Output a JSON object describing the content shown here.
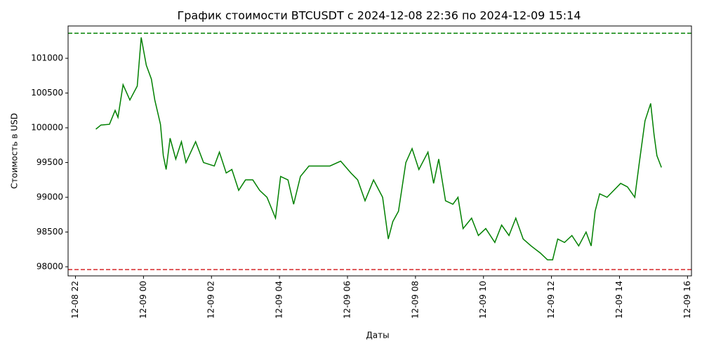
{
  "chart_data": {
    "type": "line",
    "title": "График стоимости BTCUSDT с 2024-12-08 22:36 по 2024-12-09 15:14",
    "xlabel": "Даты",
    "ylabel": "Стоимость в USD",
    "x": [
      "2024-12-08 22:36",
      "2024-12-08 22:45",
      "2024-12-08 23:00",
      "2024-12-08 23:10",
      "2024-12-08 23:15",
      "2024-12-08 23:24",
      "2024-12-08 23:36",
      "2024-12-08 23:49",
      "2024-12-08 23:56",
      "2024-12-09 00:05",
      "2024-12-09 00:14",
      "2024-12-09 00:20",
      "2024-12-09 00:30",
      "2024-12-09 00:35",
      "2024-12-09 00:40",
      "2024-12-09 00:47",
      "2024-12-09 00:57",
      "2024-12-09 01:07",
      "2024-12-09 01:15",
      "2024-12-09 01:32",
      "2024-12-09 01:46",
      "2024-12-09 02:05",
      "2024-12-09 02:14",
      "2024-12-09 02:26",
      "2024-12-09 02:36",
      "2024-12-09 02:48",
      "2024-12-09 03:00",
      "2024-12-09 03:13",
      "2024-12-09 03:25",
      "2024-12-09 03:38",
      "2024-12-09 03:53",
      "2024-12-09 04:02",
      "2024-12-09 04:15",
      "2024-12-09 04:25",
      "2024-12-09 04:37",
      "2024-12-09 04:52",
      "2024-12-09 05:10",
      "2024-12-09 05:29",
      "2024-12-09 05:48",
      "2024-12-09 06:06",
      "2024-12-09 06:18",
      "2024-12-09 06:31",
      "2024-12-09 06:46",
      "2024-12-09 07:02",
      "2024-12-09 07:12",
      "2024-12-09 07:20",
      "2024-12-09 07:30",
      "2024-12-09 07:43",
      "2024-12-09 07:54",
      "2024-12-09 08:06",
      "2024-12-09 08:22",
      "2024-12-09 08:32",
      "2024-12-09 08:41",
      "2024-12-09 08:53",
      "2024-12-09 09:06",
      "2024-12-09 09:15",
      "2024-12-09 09:24",
      "2024-12-09 09:39",
      "2024-12-09 09:51",
      "2024-12-09 10:04",
      "2024-12-09 10:20",
      "2024-12-09 10:32",
      "2024-12-09 10:45",
      "2024-12-09 10:57",
      "2024-12-09 11:10",
      "2024-12-09 11:24",
      "2024-12-09 11:40",
      "2024-12-09 11:53",
      "2024-12-09 12:02",
      "2024-12-09 12:11",
      "2024-12-09 12:23",
      "2024-12-09 12:36",
      "2024-12-09 12:48",
      "2024-12-09 13:01",
      "2024-12-09 13:10",
      "2024-12-09 13:17",
      "2024-12-09 13:25",
      "2024-12-09 13:38",
      "2024-12-09 13:50",
      "2024-12-09 14:02",
      "2024-12-09 14:14",
      "2024-12-09 14:27",
      "2024-12-09 14:35",
      "2024-12-09 14:45",
      "2024-12-09 14:55",
      "2024-12-09 15:01",
      "2024-12-09 15:06",
      "2024-12-09 15:14"
    ],
    "series": [
      {
        "color": "#008000",
        "values": [
          99980,
          100040,
          100050,
          100250,
          100150,
          100620,
          100400,
          100600,
          101300,
          100900,
          100700,
          100400,
          100050,
          99600,
          99400,
          99850,
          99550,
          99800,
          99500,
          99800,
          99500,
          99450,
          99650,
          99350,
          99400,
          99100,
          99250,
          99250,
          99100,
          99000,
          98700,
          99300,
          99250,
          98900,
          99300,
          99450,
          99450,
          99450,
          99520,
          99350,
          99250,
          98950,
          99250,
          99000,
          98400,
          98650,
          98800,
          99500,
          99700,
          99400,
          99650,
          99200,
          99550,
          98950,
          98900,
          99000,
          98550,
          98700,
          98450,
          98550,
          98350,
          98600,
          98450,
          98700,
          98400,
          98300,
          98200,
          98100,
          98100,
          98400,
          98350,
          98450,
          98300,
          98500,
          98300,
          98800,
          99050,
          99000,
          99100,
          99200,
          99150,
          99000,
          99500,
          100100,
          100350,
          99900,
          99600,
          99430
        ]
      }
    ],
    "hlines": [
      {
        "value": 101360,
        "color": "#008000"
      },
      {
        "value": 97960,
        "color": "#d62728"
      }
    ],
    "xlim": [
      "2024-12-08 21:47",
      "2024-12-09 16:07"
    ],
    "xticks": [
      {
        "value": "2024-12-08 22:00",
        "label": "12-08 22"
      },
      {
        "value": "2024-12-09 00:00",
        "label": "12-09 00"
      },
      {
        "value": "2024-12-09 02:00",
        "label": "12-09 02"
      },
      {
        "value": "2024-12-09 04:00",
        "label": "12-09 04"
      },
      {
        "value": "2024-12-09 06:00",
        "label": "12-09 06"
      },
      {
        "value": "2024-12-09 08:00",
        "label": "12-09 08"
      },
      {
        "value": "2024-12-09 10:00",
        "label": "12-09 10"
      },
      {
        "value": "2024-12-09 12:00",
        "label": "12-09 12"
      },
      {
        "value": "2024-12-09 14:00",
        "label": "12-09 14"
      },
      {
        "value": "2024-12-09 16:00",
        "label": "12-09 16"
      }
    ],
    "ylim": [
      97869,
      101465
    ],
    "yticks": [
      98000,
      98500,
      99000,
      99500,
      100000,
      100500,
      101000
    ]
  }
}
